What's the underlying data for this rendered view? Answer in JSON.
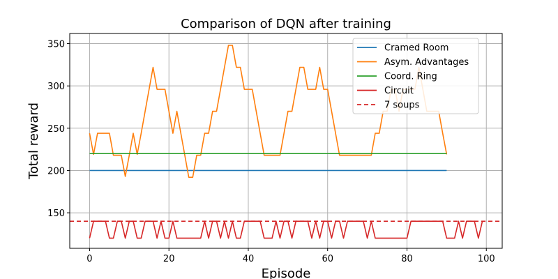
{
  "chart_data": {
    "type": "line",
    "title": "Comparison of DQN after training",
    "xlabel": "Episode",
    "ylabel": "Total reward",
    "xlim": [
      -5,
      104
    ],
    "ylim": [
      108,
      362
    ],
    "xticks": [
      0,
      20,
      40,
      60,
      80,
      100
    ],
    "yticks": [
      150,
      200,
      250,
      300,
      350
    ],
    "grid": true,
    "legend_position": "top-right",
    "series": [
      {
        "name": "Cramed Room",
        "color": "#1f77b4",
        "dashed": false,
        "x": [
          0,
          90
        ],
        "y": [
          200,
          200
        ]
      },
      {
        "name": "Asym. Advantages",
        "color": "#ff7f0e",
        "dashed": false,
        "x": [
          0,
          1,
          2,
          3,
          4,
          5,
          6,
          7,
          8,
          9,
          10,
          11,
          12,
          13,
          14,
          15,
          16,
          17,
          18,
          19,
          20,
          21,
          22,
          23,
          24,
          25,
          26,
          27,
          28,
          29,
          30,
          31,
          32,
          33,
          34,
          35,
          36,
          37,
          38,
          39,
          40,
          41,
          42,
          43,
          44,
          45,
          46,
          47,
          48,
          49,
          50,
          51,
          52,
          53,
          54,
          55,
          56,
          57,
          58,
          59,
          60,
          61,
          62,
          63,
          64,
          65,
          66,
          67,
          68,
          69,
          70,
          71,
          72,
          73,
          74,
          75,
          76,
          77,
          78,
          79,
          80,
          81,
          82,
          83,
          84,
          85,
          86,
          87,
          88,
          89,
          90
        ],
        "y": [
          244,
          219,
          244,
          244,
          244,
          244,
          218,
          218,
          218,
          193,
          218,
          244,
          219,
          244,
          270,
          296,
          322,
          296,
          296,
          296,
          270,
          244,
          270,
          244,
          218,
          192,
          192,
          218,
          218,
          244,
          244,
          270,
          270,
          296,
          322,
          348,
          348,
          322,
          322,
          296,
          296,
          296,
          270,
          244,
          218,
          218,
          218,
          218,
          218,
          244,
          270,
          270,
          296,
          322,
          322,
          296,
          296,
          296,
          322,
          296,
          296,
          270,
          244,
          218,
          218,
          218,
          218,
          218,
          218,
          218,
          218,
          218,
          244,
          244,
          270,
          270,
          296,
          296,
          270,
          296,
          296,
          296,
          296,
          322,
          296,
          270,
          270,
          270,
          270,
          244,
          219
        ]
      },
      {
        "name": "Coord. Ring",
        "color": "#2ca02c",
        "dashed": false,
        "x": [
          0,
          90
        ],
        "y": [
          220,
          220
        ]
      },
      {
        "name": "Circuit",
        "color": "#d62728",
        "dashed": false,
        "x": [
          0,
          1,
          2,
          3,
          4,
          5,
          6,
          7,
          8,
          9,
          10,
          11,
          12,
          13,
          14,
          15,
          16,
          17,
          18,
          19,
          20,
          21,
          22,
          23,
          24,
          25,
          26,
          27,
          28,
          29,
          30,
          31,
          32,
          33,
          34,
          35,
          36,
          37,
          38,
          39,
          40,
          41,
          42,
          43,
          44,
          45,
          46,
          47,
          48,
          49,
          50,
          51,
          52,
          53,
          54,
          55,
          56,
          57,
          58,
          59,
          60,
          61,
          62,
          63,
          64,
          65,
          66,
          67,
          68,
          69,
          70,
          71,
          72,
          73,
          74,
          75,
          76,
          77,
          78,
          79,
          80,
          81,
          82,
          83,
          84,
          85,
          86,
          87,
          88,
          89,
          90,
          91,
          92,
          93,
          94,
          95,
          96,
          97,
          98,
          99
        ],
        "y": [
          120,
          140,
          140,
          140,
          140,
          120,
          120,
          140,
          140,
          120,
          140,
          140,
          120,
          120,
          140,
          140,
          140,
          120,
          140,
          120,
          120,
          140,
          120,
          120,
          120,
          120,
          120,
          120,
          120,
          140,
          120,
          140,
          140,
          120,
          140,
          120,
          140,
          120,
          120,
          140,
          140,
          140,
          140,
          140,
          120,
          120,
          120,
          140,
          120,
          140,
          140,
          120,
          140,
          140,
          140,
          140,
          120,
          140,
          120,
          140,
          140,
          120,
          140,
          140,
          120,
          140,
          140,
          140,
          140,
          140,
          120,
          140,
          120,
          120,
          120,
          120,
          120,
          120,
          120,
          120,
          120,
          140,
          140,
          140,
          140,
          140,
          140,
          140,
          140,
          140,
          120,
          120,
          120,
          140,
          120,
          140,
          140,
          140,
          120,
          140
        ]
      },
      {
        "name": "7 soups",
        "color": "#d62728",
        "dashed": true,
        "x": [
          -5,
          104
        ],
        "y": [
          140,
          140
        ]
      }
    ]
  }
}
